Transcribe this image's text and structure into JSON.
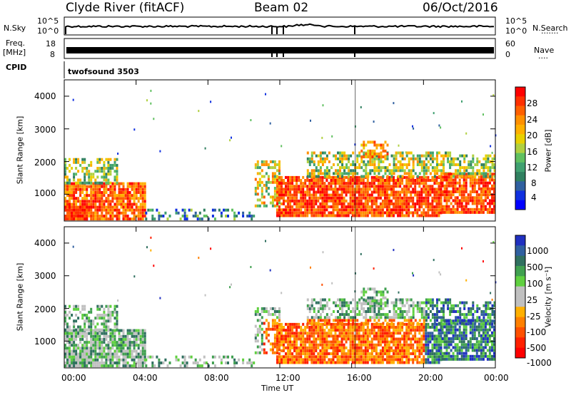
{
  "header": {
    "station": "Clyde River (fitACF)",
    "beam": "Beam 02",
    "date": "06/Oct/2016"
  },
  "top_panels": {
    "nsky_label": "N.Sky",
    "nsky_ticks": [
      "10^5",
      "10^0"
    ],
    "nsearch_label": "N.Search",
    "nsearch_ticks": [
      "10^5",
      "10^0"
    ],
    "freq_label": "Freq.",
    "freq_unit": "[MHz]",
    "freq_ticks": [
      "18",
      "8"
    ],
    "nave_label": "Nave",
    "nave_ticks": [
      "60",
      "0"
    ],
    "cpid_label": "CPID",
    "cpid_value": "twofsound 3503"
  },
  "power_panel": {
    "ylabel": "Slant Range [km]",
    "yticks": [
      "4000",
      "3000",
      "2000",
      "1000"
    ],
    "colorbar_label": "Power [dB]",
    "colorbar_ticks": [
      "28",
      "24",
      "20",
      "16",
      "12",
      "8",
      "4"
    ],
    "colorbar_colors": [
      "#ff0000",
      "#ff3000",
      "#ff6000",
      "#ff9000",
      "#ffb000",
      "#e8d000",
      "#b0d040",
      "#60c060",
      "#40a070",
      "#308060",
      "#3060a0",
      "#1030e0",
      "#0000ff"
    ]
  },
  "velocity_panel": {
    "ylabel": "Slant Range [km]",
    "yticks": [
      "4000",
      "3000",
      "2000",
      "1000"
    ],
    "colorbar_label": "Velocity [m s⁻¹]",
    "colorbar_ticks": [
      "1000",
      "500",
      "100",
      "25",
      "-25",
      "-100",
      "-500",
      "-1000"
    ],
    "colorbar_colors": [
      "#2030c0",
      "#3060a0",
      "#307060",
      "#40a050",
      "#60d040",
      "#c0c0c0",
      "#c0c0c0",
      "#ffb000",
      "#ff8000",
      "#ff5000",
      "#ff2000",
      "#ff0000"
    ]
  },
  "xaxis": {
    "xlabel": "Time UT",
    "xticks": [
      "00:00",
      "04:00",
      "08:00",
      "12:00",
      "16:00",
      "20:00",
      "00:00"
    ]
  },
  "chart_data": [
    {
      "type": "line",
      "title": "Clyde River (fitACF)  Beam 02  06/Oct/2016",
      "ylabel": "N.Sky / N.Search",
      "ylim": [
        "10^0",
        "10^5"
      ],
      "xlim": [
        "00:00",
        "00:00"
      ]
    },
    {
      "type": "line",
      "ylabel": "Freq. [MHz] / Nave",
      "ylim": [
        8,
        18
      ],
      "ylim_right": [
        0,
        60
      ]
    },
    {
      "type": "heatmap",
      "title": "Power",
      "xlabel": "Time UT",
      "ylabel": "Slant Range [km]",
      "xlim": [
        "00:00",
        "00:00"
      ],
      "ylim": [
        180,
        4500
      ],
      "colorbar": "Power [dB]",
      "color_range": [
        0,
        30
      ],
      "xticks": [
        "00:00",
        "04:00",
        "08:00",
        "12:00",
        "16:00",
        "20:00",
        "00:00"
      ],
      "yticks": [
        1000,
        2000,
        3000,
        4000
      ]
    },
    {
      "type": "heatmap",
      "title": "Velocity",
      "xlabel": "Time UT",
      "ylabel": "Slant Range [km]",
      "xlim": [
        "00:00",
        "00:00"
      ],
      "ylim": [
        180,
        4500
      ],
      "colorbar": "Velocity [m s-1]",
      "color_levels": [
        1000,
        500,
        100,
        25,
        -25,
        -100,
        -500,
        -1000
      ],
      "xticks": [
        "00:00",
        "04:00",
        "08:00",
        "12:00",
        "16:00",
        "20:00",
        "00:00"
      ],
      "yticks": [
        1000,
        2000,
        3000,
        4000
      ]
    }
  ]
}
